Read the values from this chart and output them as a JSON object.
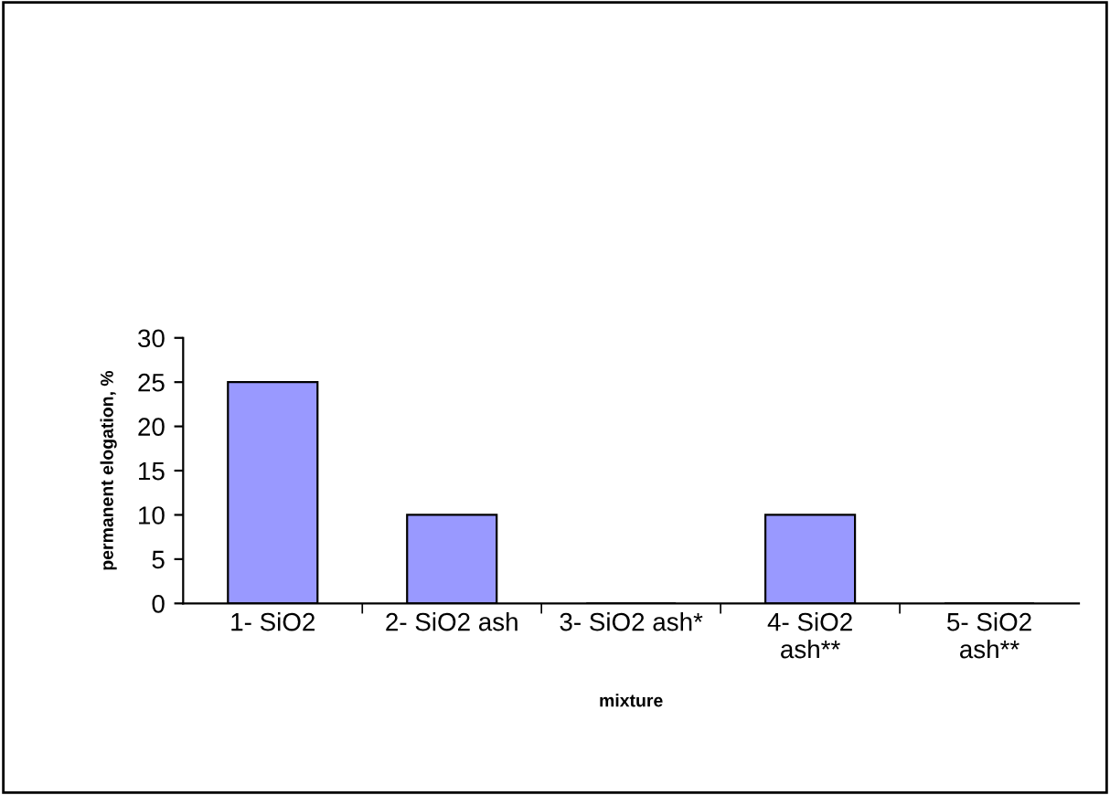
{
  "chart_data": {
    "type": "bar",
    "xlabel": "mixture",
    "ylabel": "permanent elogation, %",
    "categories": [
      "1- SiO2",
      "2- SiO2 ash",
      "3- SiO2 ash*",
      "4- SiO2\nash**",
      "5- SiO2\nash**"
    ],
    "values": [
      25,
      10,
      0,
      10,
      0
    ],
    "color": "#9999ff",
    "ylim": [
      0,
      30
    ],
    "yticks": [
      0,
      5,
      10,
      15,
      20,
      25,
      30
    ],
    "grid": false
  }
}
